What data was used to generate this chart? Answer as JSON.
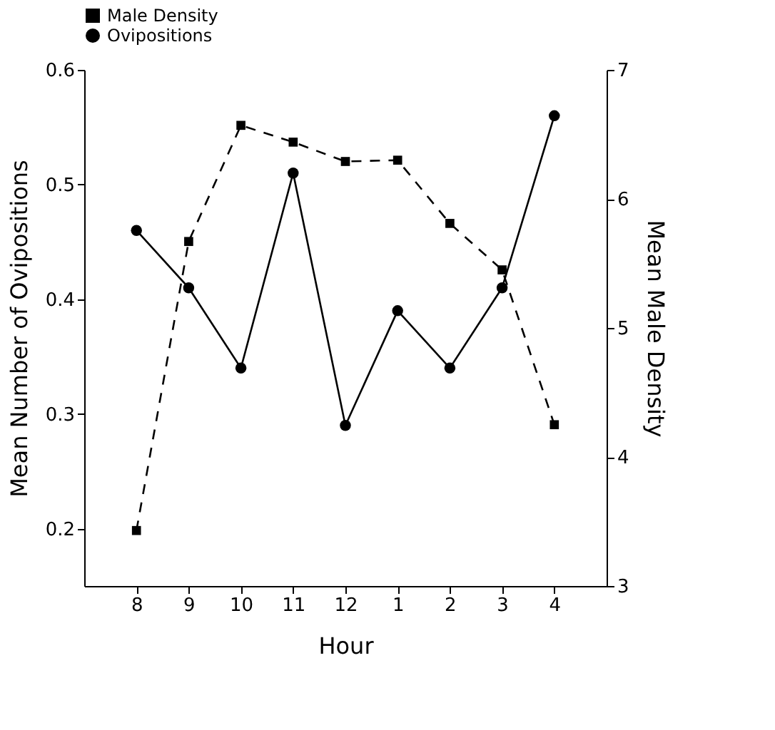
{
  "chart_data": {
    "type": "line",
    "xlabel": "Hour",
    "ylabel": "Mean Number of Ovipositions",
    "y2label": "Mean Male Density",
    "categories": [
      "8",
      "9",
      "10",
      "11",
      "12",
      "1",
      "2",
      "3",
      "4"
    ],
    "series": [
      {
        "name": "Male Density",
        "color": "#000000",
        "axis": "y2",
        "marker": "square",
        "line_style": "dashed",
        "values": [
          3.43,
          5.67,
          6.57,
          6.44,
          6.29,
          6.3,
          5.81,
          5.45,
          4.25
        ]
      },
      {
        "name": "Ovipositions",
        "color": "#000000",
        "marker": "circle",
        "line_style": "solid",
        "values": [
          0.46,
          0.41,
          0.34,
          0.51,
          0.29,
          0.39,
          0.34,
          0.41,
          0.56
        ]
      }
    ],
    "ylim": [
      0.15,
      0.6
    ],
    "yticks": [
      0.2,
      0.3,
      0.4,
      0.5,
      0.6
    ],
    "y2lim": [
      3,
      7
    ],
    "y2ticks": [
      3,
      4,
      5,
      6,
      7
    ],
    "grid": false,
    "legend": "top"
  }
}
